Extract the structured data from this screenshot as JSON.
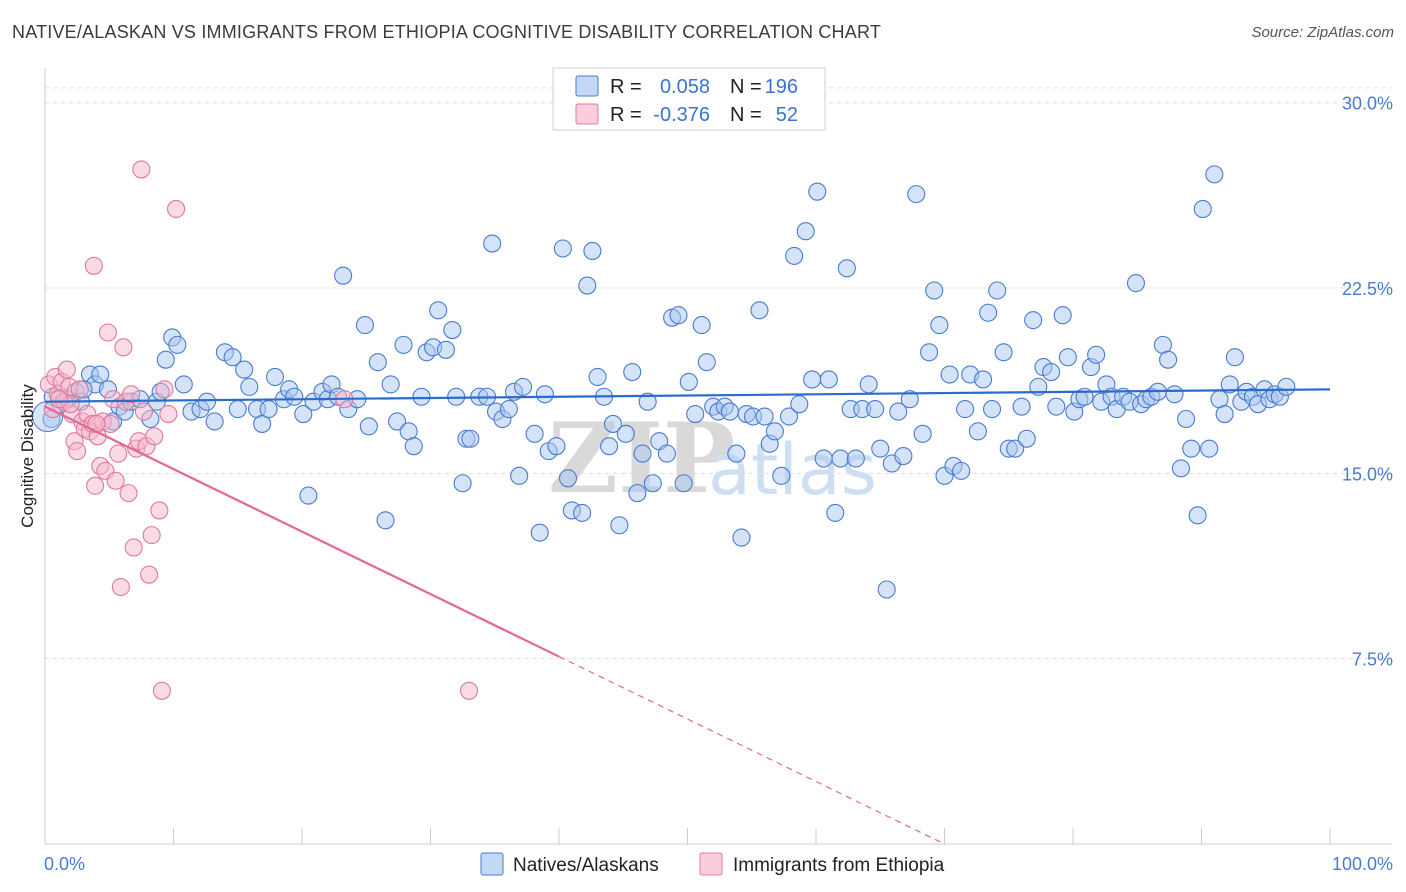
{
  "title": "NATIVE/ALASKAN VS IMMIGRANTS FROM ETHIOPIA COGNITIVE DISABILITY CORRELATION CHART",
  "source": "Source: ZipAtlas.com",
  "watermark": {
    "zip": "ZIP",
    "atlas": "atlas"
  },
  "colors": {
    "blue_fill": "#a9c8ef",
    "blue_stroke": "#4a7bd0",
    "blue_line": "#2a6ccb",
    "pink_fill": "#f6b8cc",
    "pink_stroke": "#e2789c",
    "pink_line": "#e0689a",
    "grid": "#dddddd",
    "axis_tick": "#4a7bd0"
  },
  "legend_top": {
    "rows": [
      {
        "r_label": "R =",
        "r_value": "0.058",
        "n_label": "N =",
        "n_value": "196"
      },
      {
        "r_label": "R =",
        "r_value": "-0.376",
        "n_label": "N =",
        "n_value": "52"
      }
    ]
  },
  "legend_bottom": [
    "Natives/Alaskans",
    "Immigrants from Ethiopia"
  ],
  "chart_data": {
    "type": "scatter",
    "title": "NATIVE/ALASKAN VS IMMIGRANTS FROM ETHIOPIA COGNITIVE DISABILITY CORRELATION CHART",
    "xlabel": "",
    "ylabel": "Cognitive Disability",
    "xlim": [
      0,
      100
    ],
    "ylim": [
      0,
      31
    ],
    "x_ticks": [
      {
        "v": 0,
        "label": "0.0%"
      },
      {
        "v": 100,
        "label": "100.0%"
      }
    ],
    "y_ticks": [
      {
        "v": 7.5,
        "label": "7.5%"
      },
      {
        "v": 15.0,
        "label": "15.0%"
      },
      {
        "v": 22.5,
        "label": "22.5%"
      },
      {
        "v": 30.0,
        "label": "30.0%"
      }
    ],
    "grid": true,
    "legend_placement": "top-center",
    "series": [
      {
        "name": "Natives/Alaskans",
        "trend": {
          "x0": 0,
          "y0": 17.9,
          "x1": 100,
          "y1": 18.4,
          "solid_until": 100
        },
        "points": [
          [
            0.5,
            17.2
          ],
          [
            1.2,
            17.8
          ],
          [
            1.8,
            18.0
          ],
          [
            2.4,
            18.3
          ],
          [
            2.8,
            17.9
          ],
          [
            3.5,
            19.0
          ],
          [
            3.9,
            18.6
          ],
          [
            4.3,
            19.0
          ],
          [
            4.9,
            18.4
          ],
          [
            5.3,
            17.1
          ],
          [
            5.8,
            17.7
          ],
          [
            6.2,
            17.5
          ],
          [
            6.7,
            17.9
          ],
          [
            7.4,
            18.0
          ],
          [
            8.2,
            17.2
          ],
          [
            8.7,
            17.9
          ],
          [
            9.4,
            19.6
          ],
          [
            9.9,
            20.5
          ],
          [
            10.3,
            20.2
          ],
          [
            10.8,
            18.6
          ],
          [
            11.4,
            17.5
          ],
          [
            12.1,
            17.6
          ],
          [
            12.6,
            17.9
          ],
          [
            13.2,
            17.1
          ],
          [
            14.0,
            19.9
          ],
          [
            14.6,
            19.7
          ],
          [
            15.0,
            17.6
          ],
          [
            15.5,
            19.2
          ],
          [
            15.9,
            18.5
          ],
          [
            16.5,
            17.6
          ],
          [
            16.9,
            17.0
          ],
          [
            17.4,
            17.6
          ],
          [
            17.9,
            18.9
          ],
          [
            18.6,
            18.0
          ],
          [
            19.0,
            18.4
          ],
          [
            19.4,
            18.1
          ],
          [
            20.1,
            17.4
          ],
          [
            20.5,
            14.1
          ],
          [
            20.9,
            17.9
          ],
          [
            21.6,
            18.3
          ],
          [
            22.0,
            18.0
          ],
          [
            22.3,
            18.6
          ],
          [
            22.8,
            18.1
          ],
          [
            23.2,
            23.0
          ],
          [
            23.6,
            17.6
          ],
          [
            24.3,
            18.0
          ],
          [
            24.9,
            21.0
          ],
          [
            25.2,
            16.9
          ],
          [
            25.9,
            19.5
          ],
          [
            26.5,
            13.1
          ],
          [
            26.9,
            18.6
          ],
          [
            27.4,
            17.1
          ],
          [
            27.9,
            20.2
          ],
          [
            28.3,
            16.7
          ],
          [
            28.7,
            16.1
          ],
          [
            29.3,
            18.1
          ],
          [
            29.7,
            19.9
          ],
          [
            30.2,
            20.1
          ],
          [
            30.6,
            21.6
          ],
          [
            31.2,
            20.0
          ],
          [
            31.7,
            20.8
          ],
          [
            32.0,
            18.1
          ],
          [
            32.5,
            14.6
          ],
          [
            32.8,
            16.4
          ],
          [
            33.1,
            16.4
          ],
          [
            33.8,
            18.1
          ],
          [
            34.4,
            18.1
          ],
          [
            34.8,
            24.3
          ],
          [
            35.1,
            17.5
          ],
          [
            35.6,
            17.2
          ],
          [
            36.1,
            17.6
          ],
          [
            36.5,
            18.3
          ],
          [
            36.9,
            14.9
          ],
          [
            37.2,
            18.5
          ],
          [
            38.1,
            16.6
          ],
          [
            38.9,
            18.2
          ],
          [
            39.2,
            15.9
          ],
          [
            39.8,
            16.1
          ],
          [
            40.3,
            24.1
          ],
          [
            40.7,
            14.8
          ],
          [
            41.0,
            13.5
          ],
          [
            41.8,
            13.4
          ],
          [
            42.2,
            22.6
          ],
          [
            42.6,
            24.0
          ],
          [
            43.0,
            18.9
          ],
          [
            43.5,
            18.1
          ],
          [
            43.9,
            16.1
          ],
          [
            44.2,
            17.0
          ],
          [
            44.7,
            12.9
          ],
          [
            45.2,
            16.6
          ],
          [
            45.7,
            19.1
          ],
          [
            46.1,
            14.2
          ],
          [
            46.5,
            15.8
          ],
          [
            46.9,
            17.9
          ],
          [
            47.3,
            14.6
          ],
          [
            47.8,
            16.3
          ],
          [
            48.4,
            15.8
          ],
          [
            48.8,
            21.3
          ],
          [
            49.3,
            21.4
          ],
          [
            49.7,
            14.6
          ],
          [
            50.1,
            18.7
          ],
          [
            50.6,
            17.4
          ],
          [
            51.1,
            21.0
          ],
          [
            51.5,
            19.5
          ],
          [
            52.0,
            17.7
          ],
          [
            52.4,
            17.5
          ],
          [
            52.9,
            17.7
          ],
          [
            53.3,
            17.5
          ],
          [
            53.8,
            15.8
          ],
          [
            54.2,
            12.4
          ],
          [
            54.6,
            17.4
          ],
          [
            55.1,
            17.3
          ],
          [
            55.6,
            21.6
          ],
          [
            56.0,
            17.3
          ],
          [
            56.4,
            16.2
          ],
          [
            56.8,
            16.7
          ],
          [
            57.3,
            14.9
          ],
          [
            57.9,
            17.3
          ],
          [
            58.3,
            23.8
          ],
          [
            58.7,
            17.8
          ],
          [
            59.2,
            24.8
          ],
          [
            59.7,
            18.8
          ],
          [
            60.1,
            26.4
          ],
          [
            60.6,
            15.6
          ],
          [
            61.0,
            18.8
          ],
          [
            61.5,
            13.4
          ],
          [
            61.9,
            15.6
          ],
          [
            62.4,
            23.3
          ],
          [
            62.7,
            17.6
          ],
          [
            63.1,
            15.6
          ],
          [
            63.6,
            17.6
          ],
          [
            64.1,
            18.6
          ],
          [
            64.6,
            17.6
          ],
          [
            65.0,
            16.0
          ],
          [
            65.5,
            10.3
          ],
          [
            65.9,
            15.4
          ],
          [
            66.4,
            17.5
          ],
          [
            66.8,
            15.7
          ],
          [
            67.3,
            18.0
          ],
          [
            67.8,
            26.3
          ],
          [
            68.3,
            16.6
          ],
          [
            68.8,
            19.9
          ],
          [
            69.2,
            22.4
          ],
          [
            69.6,
            21.0
          ],
          [
            70.0,
            14.9
          ],
          [
            70.4,
            19.0
          ],
          [
            70.7,
            15.3
          ],
          [
            71.3,
            15.1
          ],
          [
            71.6,
            17.6
          ],
          [
            72.0,
            19.0
          ],
          [
            72.6,
            16.7
          ],
          [
            73.0,
            18.8
          ],
          [
            73.4,
            21.5
          ],
          [
            73.7,
            17.6
          ],
          [
            74.1,
            22.4
          ],
          [
            74.6,
            19.9
          ],
          [
            75.0,
            16.0
          ],
          [
            75.5,
            16.0
          ],
          [
            76.0,
            17.7
          ],
          [
            76.4,
            16.4
          ],
          [
            76.9,
            21.2
          ],
          [
            77.3,
            18.5
          ],
          [
            77.7,
            19.3
          ],
          [
            78.3,
            19.1
          ],
          [
            78.7,
            17.7
          ],
          [
            79.2,
            21.4
          ],
          [
            79.6,
            19.7
          ],
          [
            80.1,
            17.5
          ],
          [
            80.5,
            18.0
          ],
          [
            80.9,
            18.1
          ],
          [
            81.4,
            19.3
          ],
          [
            81.8,
            19.8
          ],
          [
            82.2,
            17.9
          ],
          [
            82.6,
            18.6
          ],
          [
            83.0,
            18.1
          ],
          [
            83.4,
            17.6
          ],
          [
            83.9,
            18.1
          ],
          [
            84.4,
            17.9
          ],
          [
            84.9,
            22.7
          ],
          [
            85.3,
            17.8
          ],
          [
            85.7,
            18.0
          ],
          [
            86.1,
            18.1
          ],
          [
            86.6,
            18.3
          ],
          [
            87.0,
            20.2
          ],
          [
            87.4,
            19.6
          ],
          [
            87.9,
            18.2
          ],
          [
            88.4,
            15.2
          ],
          [
            88.8,
            17.2
          ],
          [
            89.2,
            16.0
          ],
          [
            89.7,
            13.3
          ],
          [
            90.1,
            25.7
          ],
          [
            90.6,
            16.0
          ],
          [
            91.0,
            27.1
          ],
          [
            91.4,
            18.0
          ],
          [
            91.8,
            17.4
          ],
          [
            92.2,
            18.6
          ],
          [
            92.6,
            19.7
          ],
          [
            93.1,
            17.9
          ],
          [
            93.5,
            18.3
          ],
          [
            94.0,
            18.1
          ],
          [
            94.4,
            17.8
          ],
          [
            94.9,
            18.4
          ],
          [
            95.3,
            18.0
          ],
          [
            95.7,
            18.2
          ],
          [
            96.1,
            18.1
          ],
          [
            96.6,
            18.5
          ],
          [
            0.6,
            18.1
          ],
          [
            3.0,
            18.4
          ],
          [
            9.0,
            18.3
          ],
          [
            38.5,
            12.6
          ]
        ]
      },
      {
        "name": "Immigrants from Ethiopia",
        "trend": {
          "x0": 0,
          "y0": 17.7,
          "x1": 70,
          "y1": 0.0,
          "solid_until": 40
        },
        "points": [
          [
            0.3,
            18.6
          ],
          [
            0.6,
            17.6
          ],
          [
            0.8,
            18.9
          ],
          [
            1.0,
            18.2
          ],
          [
            1.3,
            18.7
          ],
          [
            1.5,
            17.9
          ],
          [
            1.7,
            19.2
          ],
          [
            1.9,
            18.5
          ],
          [
            2.1,
            17.4
          ],
          [
            2.3,
            16.3
          ],
          [
            2.5,
            15.9
          ],
          [
            2.7,
            18.4
          ],
          [
            2.9,
            17.1
          ],
          [
            3.1,
            16.8
          ],
          [
            3.3,
            17.4
          ],
          [
            3.5,
            16.7
          ],
          [
            3.7,
            17.0
          ],
          [
            3.9,
            14.5
          ],
          [
            4.1,
            16.5
          ],
          [
            4.3,
            15.3
          ],
          [
            4.5,
            17.1
          ],
          [
            4.7,
            15.1
          ],
          [
            4.9,
            20.7
          ],
          [
            5.1,
            17.0
          ],
          [
            5.3,
            18.0
          ],
          [
            5.5,
            14.7
          ],
          [
            5.7,
            15.8
          ],
          [
            5.9,
            10.4
          ],
          [
            6.1,
            20.1
          ],
          [
            6.3,
            17.9
          ],
          [
            6.5,
            14.2
          ],
          [
            6.7,
            18.2
          ],
          [
            6.9,
            12.0
          ],
          [
            7.1,
            16.0
          ],
          [
            7.3,
            16.3
          ],
          [
            7.5,
            27.3
          ],
          [
            7.7,
            17.5
          ],
          [
            7.9,
            16.1
          ],
          [
            8.1,
            10.9
          ],
          [
            8.3,
            12.5
          ],
          [
            8.5,
            16.5
          ],
          [
            8.9,
            13.5
          ],
          [
            9.1,
            6.2
          ],
          [
            9.3,
            18.4
          ],
          [
            9.6,
            17.4
          ],
          [
            10.2,
            25.7
          ],
          [
            3.8,
            23.4
          ],
          [
            23.3,
            18.0
          ],
          [
            33.0,
            6.2
          ],
          [
            2.0,
            17.8
          ],
          [
            1.1,
            18.0
          ],
          [
            4.0,
            17.0
          ]
        ]
      }
    ]
  }
}
